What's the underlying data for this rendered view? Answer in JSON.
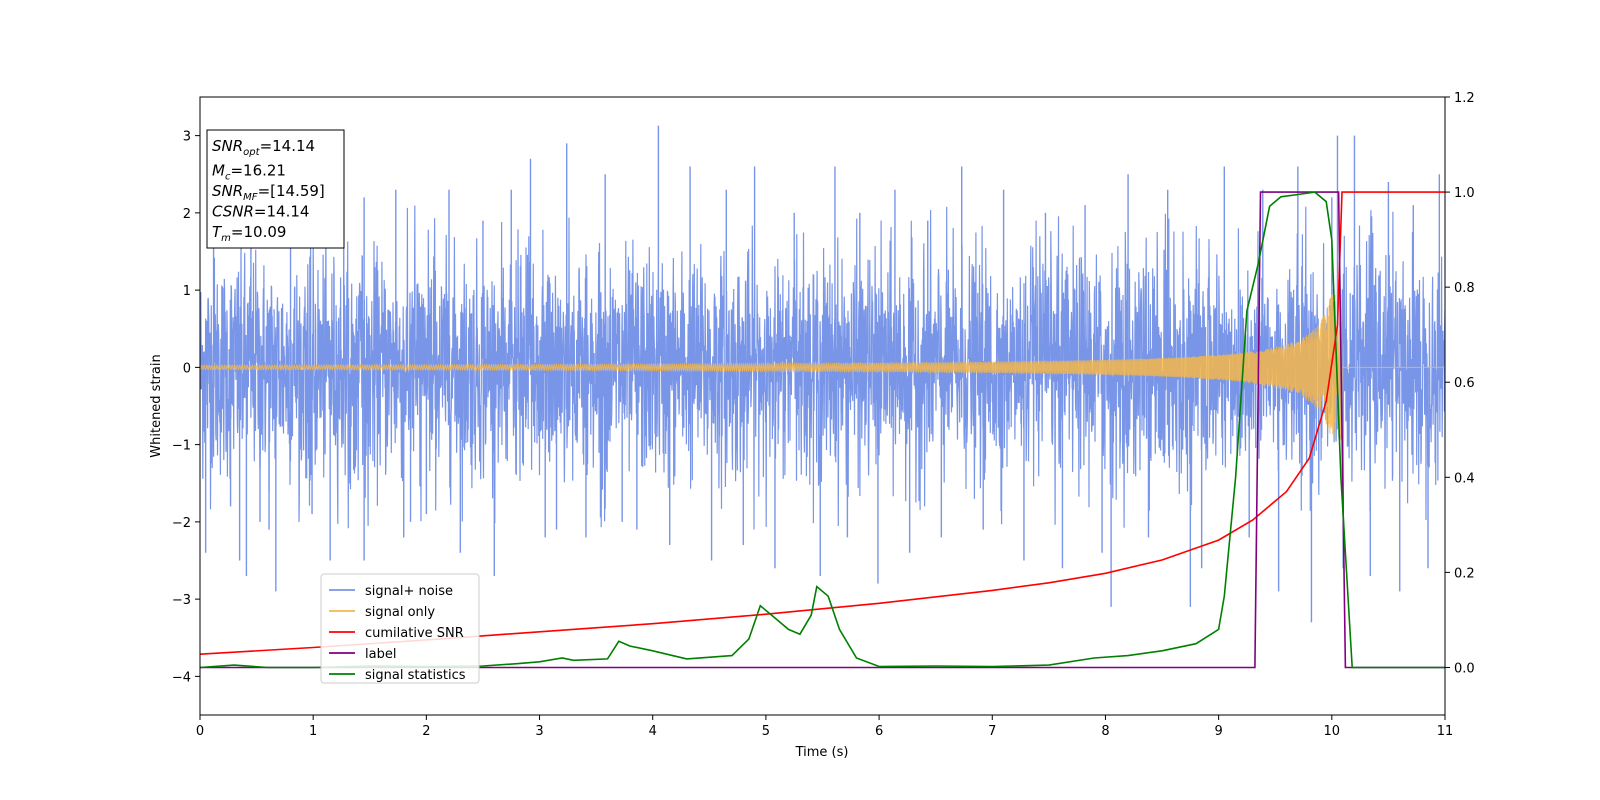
{
  "chart_data": {
    "type": "line",
    "xlabel": "Time (s)",
    "ylabel": "Whitened strain",
    "xlim": [
      0,
      11
    ],
    "ylim": [
      -4.5,
      3.5
    ],
    "y2lim": [
      -0.1,
      1.2
    ],
    "grid": false,
    "x_ticks": [
      0,
      1,
      2,
      3,
      4,
      5,
      6,
      7,
      8,
      9,
      10,
      11
    ],
    "y_ticks": [
      -4,
      -3,
      -2,
      -1,
      0,
      1,
      2,
      3
    ],
    "y2_ticks": [
      "0.0",
      "0.2",
      "0.4",
      "0.6",
      "0.8",
      "1.0",
      "1.2"
    ],
    "legend_position": "lower-left",
    "info_box": {
      "lines": [
        {
          "base": "SNR",
          "sub": "opt",
          "value": "=14.14"
        },
        {
          "base": "M",
          "sub": "c",
          "value": "=16.21"
        },
        {
          "base": "SNR",
          "sub": "MF",
          "value": "=[14.59]"
        },
        {
          "base": "CSNR",
          "sub": "",
          "value": "=14.14"
        },
        {
          "base": "T",
          "sub": "m",
          "value": "=10.09"
        }
      ]
    },
    "series": [
      {
        "name": "signal+ noise",
        "axis": "left",
        "color": "#7895e8",
        "description_points": "noise envelope approx ±2 with spikes to ±3",
        "spikes": [
          [
            0.05,
            -2.4
          ],
          [
            0.12,
            2.0
          ],
          [
            0.27,
            -1.8
          ],
          [
            0.35,
            -2.5
          ],
          [
            0.41,
            -2.7
          ],
          [
            0.45,
            2.1
          ],
          [
            0.53,
            -2.0
          ],
          [
            0.61,
            -2.1
          ],
          [
            0.67,
            -2.9
          ],
          [
            0.8,
            2.2
          ],
          [
            0.99,
            -1.9
          ],
          [
            1.15,
            -2.5
          ],
          [
            1.27,
            2.4
          ],
          [
            1.45,
            2.2
          ],
          [
            1.45,
            -2.5
          ],
          [
            1.73,
            2.3
          ],
          [
            1.8,
            -2.2
          ],
          [
            1.86,
            -2.0
          ],
          [
            2.0,
            -1.9
          ],
          [
            2.2,
            2.3
          ],
          [
            2.3,
            -2.4
          ],
          [
            2.5,
            1.9
          ],
          [
            2.6,
            -2.7
          ],
          [
            2.75,
            2.3
          ],
          [
            2.92,
            2.7
          ],
          [
            3.05,
            -2.2
          ],
          [
            3.15,
            -2.1
          ],
          [
            3.24,
            2.9
          ],
          [
            3.41,
            -2.2
          ],
          [
            3.58,
            2.5
          ],
          [
            3.73,
            -2.0
          ],
          [
            3.86,
            -2.1
          ],
          [
            4.05,
            3.13
          ],
          [
            4.15,
            -2.3
          ],
          [
            4.33,
            2.6
          ],
          [
            4.52,
            -2.5
          ],
          [
            4.65,
            2.3
          ],
          [
            4.8,
            -2.3
          ],
          [
            4.9,
            2.6
          ],
          [
            5.08,
            -2.6
          ],
          [
            5.25,
            2.0
          ],
          [
            5.48,
            -2.7
          ],
          [
            5.61,
            2.6
          ],
          [
            5.72,
            -2.2
          ],
          [
            5.83,
            2.0
          ],
          [
            5.99,
            -2.8
          ],
          [
            6.14,
            2.3
          ],
          [
            6.27,
            -2.4
          ],
          [
            6.43,
            1.9
          ],
          [
            6.55,
            -2.2
          ],
          [
            6.73,
            2.6
          ],
          [
            6.92,
            -2.1
          ],
          [
            7.1,
            2.3
          ],
          [
            7.28,
            -2.5
          ],
          [
            7.47,
            2.0
          ],
          [
            7.62,
            -2.6
          ],
          [
            7.82,
            2.1
          ],
          [
            7.97,
            -2.4
          ],
          [
            8.05,
            -3.1
          ],
          [
            8.2,
            2.5
          ],
          [
            8.38,
            -2.2
          ],
          [
            8.55,
            2.3
          ],
          [
            8.75,
            -3.1
          ],
          [
            8.85,
            -2.6
          ],
          [
            9.05,
            2.6
          ],
          [
            9.27,
            -2.2
          ],
          [
            9.39,
            2.3
          ],
          [
            9.53,
            -2.9
          ],
          [
            9.7,
            2.6
          ],
          [
            9.82,
            -3.3
          ],
          [
            10.0,
            2.2
          ],
          [
            10.05,
            3.0
          ],
          [
            10.2,
            3.0
          ],
          [
            10.1,
            -2.6
          ],
          [
            10.34,
            -2.7
          ],
          [
            10.5,
            2.4
          ],
          [
            10.6,
            -2.9
          ],
          [
            10.72,
            2.1
          ],
          [
            10.85,
            -2.6
          ],
          [
            10.95,
            2.5
          ]
        ]
      },
      {
        "name": "signal only",
        "axis": "left",
        "color": "#f5b74a",
        "description_points": "chirp growing from amplitude ~0.02 to ~0.9 near t=10.09 then zero"
      },
      {
        "name": "cumilative SNR",
        "axis": "right",
        "color": "#ff0000",
        "points": [
          [
            0,
            0.028
          ],
          [
            1,
            0.042
          ],
          [
            2,
            0.058
          ],
          [
            3,
            0.075
          ],
          [
            4,
            0.092
          ],
          [
            5,
            0.112
          ],
          [
            6,
            0.135
          ],
          [
            7,
            0.162
          ],
          [
            7.5,
            0.178
          ],
          [
            8,
            0.198
          ],
          [
            8.5,
            0.226
          ],
          [
            9,
            0.268
          ],
          [
            9.3,
            0.31
          ],
          [
            9.6,
            0.37
          ],
          [
            9.8,
            0.44
          ],
          [
            9.95,
            0.56
          ],
          [
            10.05,
            0.72
          ],
          [
            10.09,
            1.0
          ],
          [
            11,
            1.0
          ]
        ]
      },
      {
        "name": "label",
        "axis": "right",
        "color": "#800080",
        "points": [
          [
            0,
            0.0
          ],
          [
            9.32,
            0.0
          ],
          [
            9.37,
            1.0
          ],
          [
            10.06,
            1.0
          ],
          [
            10.12,
            0.0
          ],
          [
            11,
            0.0
          ]
        ]
      },
      {
        "name": "signal statistics",
        "axis": "right",
        "color": "#008000",
        "points": [
          [
            0,
            0.0
          ],
          [
            0.3,
            0.005
          ],
          [
            0.6,
            0.0
          ],
          [
            1,
            0.0
          ],
          [
            1.5,
            0.003
          ],
          [
            2,
            0.002
          ],
          [
            2.5,
            0.003
          ],
          [
            2.8,
            0.008
          ],
          [
            3.0,
            0.012
          ],
          [
            3.2,
            0.02
          ],
          [
            3.3,
            0.015
          ],
          [
            3.6,
            0.018
          ],
          [
            3.7,
            0.055
          ],
          [
            3.8,
            0.045
          ],
          [
            4.0,
            0.035
          ],
          [
            4.3,
            0.018
          ],
          [
            4.7,
            0.025
          ],
          [
            4.85,
            0.06
          ],
          [
            4.95,
            0.13
          ],
          [
            5.1,
            0.1
          ],
          [
            5.2,
            0.08
          ],
          [
            5.3,
            0.07
          ],
          [
            5.4,
            0.11
          ],
          [
            5.45,
            0.17
          ],
          [
            5.55,
            0.15
          ],
          [
            5.65,
            0.08
          ],
          [
            5.8,
            0.02
          ],
          [
            6.0,
            0.002
          ],
          [
            6.5,
            0.003
          ],
          [
            7.0,
            0.002
          ],
          [
            7.5,
            0.005
          ],
          [
            7.9,
            0.02
          ],
          [
            8.2,
            0.025
          ],
          [
            8.5,
            0.035
          ],
          [
            8.8,
            0.05
          ],
          [
            8.9,
            0.065
          ],
          [
            9.0,
            0.08
          ],
          [
            9.05,
            0.15
          ],
          [
            9.15,
            0.4
          ],
          [
            9.25,
            0.75
          ],
          [
            9.35,
            0.85
          ],
          [
            9.45,
            0.97
          ],
          [
            9.55,
            0.99
          ],
          [
            9.7,
            0.995
          ],
          [
            9.85,
            1.0
          ],
          [
            9.95,
            0.98
          ],
          [
            10.0,
            0.9
          ],
          [
            10.08,
            0.4
          ],
          [
            10.18,
            0.0
          ],
          [
            11,
            0.0
          ]
        ]
      }
    ]
  }
}
